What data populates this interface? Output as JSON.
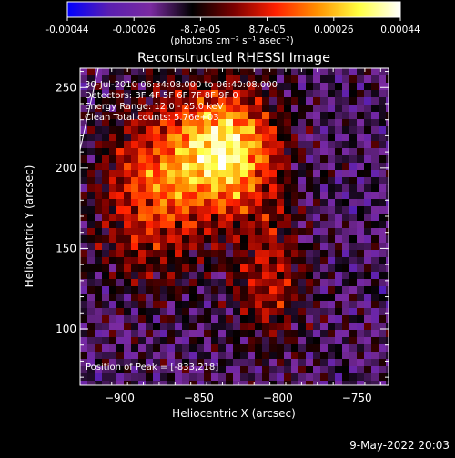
{
  "colorbar": {
    "ticks": [
      "-0.00044",
      "-0.00026",
      "-8.7e-05",
      "8.7e-05",
      "0.00026",
      "0.00044"
    ],
    "units_label": "(photons cm⁻² s⁻¹ asec⁻²)",
    "range": [
      -0.00044,
      0.00044
    ]
  },
  "chart_data": {
    "type": "heatmap",
    "title": "Reconstructed RHESSI Image",
    "xlabel": "Heliocentric X (arcsec)",
    "ylabel": "Heliocentric Y (arcsec)",
    "xlim": [
      -925,
      -730
    ],
    "ylim": [
      65,
      262
    ],
    "x_ticks": [
      -900,
      -850,
      -800,
      -750
    ],
    "y_ticks": [
      100,
      150,
      200,
      250
    ],
    "peak_position": [
      -833,
      218
    ],
    "peak_label": "Position of Peak = [-833,218]",
    "annotations": [
      "30-Jul-2010 06:34:08.000 to 06:40:08.000",
      "Detectors: 3F 4F 5F 6F 7F 8F 9F 0",
      "Energy Range: 12.0 - 25.0 keV",
      "Clean     Total counts: 5.76e+03"
    ],
    "colormap": [
      "#0000ff",
      "#5a1fb0",
      "#7a2aa0",
      "#000000",
      "#7a0000",
      "#ff2000",
      "#ff9000",
      "#ffff40",
      "#ffffff"
    ]
  },
  "footer": {
    "date": "9-May-2022 20:03"
  }
}
